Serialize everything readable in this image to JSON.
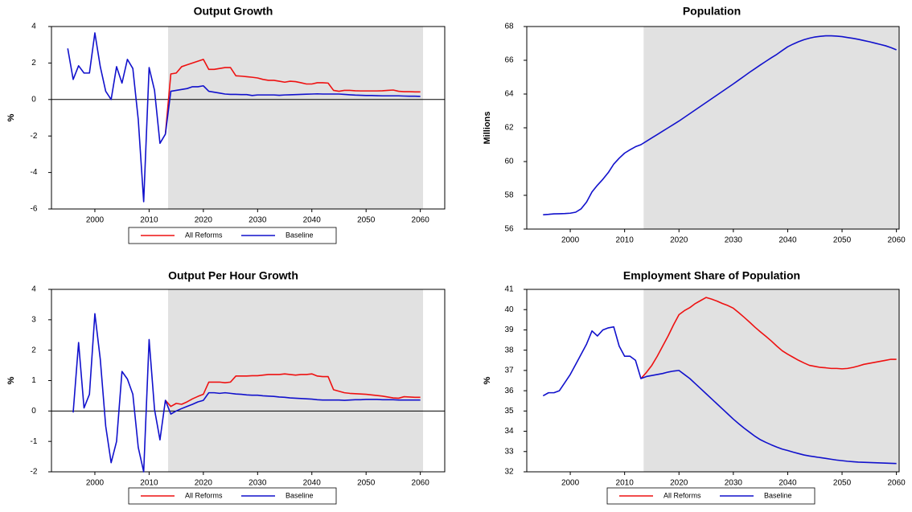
{
  "chart_data": [
    {
      "type": "line",
      "title": "Output Growth",
      "y_label": "%",
      "x": [
        1995,
        1996,
        1997,
        1998,
        1999,
        2000,
        2001,
        2002,
        2003,
        2004,
        2005,
        2006,
        2007,
        2008,
        2009,
        2010,
        2011,
        2012,
        2013,
        2014,
        2015,
        2016,
        2017,
        2018,
        2019,
        2020,
        2021,
        2022,
        2023,
        2024,
        2025,
        2026,
        2027,
        2028,
        2029,
        2030,
        2031,
        2032,
        2033,
        2034,
        2035,
        2036,
        2037,
        2038,
        2039,
        2040,
        2041,
        2042,
        2043,
        2044,
        2045,
        2046,
        2047,
        2048,
        2049,
        2050,
        2051,
        2052,
        2053,
        2054,
        2055,
        2056,
        2057,
        2058,
        2059,
        2060
      ],
      "series": [
        {
          "name": "All Reforms",
          "color": "#ee1111",
          "values": [
            null,
            null,
            null,
            null,
            null,
            null,
            null,
            null,
            null,
            null,
            null,
            null,
            null,
            null,
            null,
            null,
            null,
            null,
            -1.9,
            1.4,
            1.45,
            1.8,
            1.9,
            2.0,
            2.1,
            2.2,
            1.65,
            1.65,
            1.7,
            1.75,
            1.75,
            1.3,
            1.28,
            1.25,
            1.22,
            1.18,
            1.1,
            1.05,
            1.05,
            1.0,
            0.95,
            1.0,
            0.98,
            0.92,
            0.85,
            0.85,
            0.92,
            0.92,
            0.9,
            0.5,
            0.45,
            0.5,
            0.5,
            0.48,
            0.47,
            0.47,
            0.47,
            0.47,
            0.48,
            0.5,
            0.52,
            0.45,
            0.43,
            0.43,
            0.42,
            0.42
          ]
        },
        {
          "name": "Baseline",
          "color": "#1111cc",
          "values": [
            2.8,
            1.1,
            1.85,
            1.45,
            1.45,
            3.65,
            1.8,
            0.45,
            0.0,
            1.8,
            0.9,
            2.2,
            1.7,
            -1.1,
            -5.6,
            1.75,
            0.5,
            -2.4,
            -1.9,
            0.45,
            0.5,
            0.55,
            0.6,
            0.7,
            0.7,
            0.75,
            0.45,
            0.4,
            0.35,
            0.3,
            0.28,
            0.28,
            0.27,
            0.27,
            0.22,
            0.25,
            0.25,
            0.25,
            0.25,
            0.23,
            0.25,
            0.26,
            0.27,
            0.28,
            0.29,
            0.3,
            0.31,
            0.3,
            0.3,
            0.3,
            0.3,
            0.28,
            0.26,
            0.24,
            0.23,
            0.22,
            0.22,
            0.21,
            0.2,
            0.2,
            0.2,
            0.2,
            0.19,
            0.18,
            0.18,
            0.17
          ]
        }
      ],
      "xlim": [
        1992,
        2064.5
      ],
      "xticks": [
        2000,
        2010,
        2020,
        2030,
        2040,
        2050,
        2060
      ],
      "ylim": [
        -6,
        4
      ],
      "yticks": [
        -6,
        -4,
        -2,
        0,
        2,
        4
      ],
      "shade": [
        2013.5,
        2060.5
      ],
      "zero_line": 0,
      "legend": "bottom"
    },
    {
      "type": "line",
      "title": "Population",
      "y_label": "Millions",
      "x": [
        1995,
        1996,
        1997,
        1998,
        1999,
        2000,
        2001,
        2002,
        2003,
        2004,
        2005,
        2006,
        2007,
        2008,
        2009,
        2010,
        2011,
        2012,
        2013,
        2014,
        2015,
        2016,
        2017,
        2018,
        2019,
        2020,
        2021,
        2022,
        2023,
        2024,
        2025,
        2026,
        2027,
        2028,
        2029,
        2030,
        2031,
        2032,
        2033,
        2034,
        2035,
        2036,
        2037,
        2038,
        2039,
        2040,
        2041,
        2042,
        2043,
        2044,
        2045,
        2046,
        2047,
        2048,
        2049,
        2050,
        2051,
        2052,
        2053,
        2054,
        2055,
        2056,
        2057,
        2058,
        2059,
        2060
      ],
      "series": [
        {
          "color": "#1111cc",
          "values": [
            56.85,
            56.87,
            56.9,
            56.91,
            56.92,
            56.94,
            57.0,
            57.2,
            57.6,
            58.2,
            58.6,
            58.95,
            59.35,
            59.85,
            60.2,
            60.5,
            60.7,
            60.88,
            61.0,
            61.2,
            61.4,
            61.6,
            61.8,
            62.0,
            62.2,
            62.4,
            62.62,
            62.84,
            63.06,
            63.28,
            63.5,
            63.72,
            63.94,
            64.16,
            64.38,
            64.6,
            64.83,
            65.06,
            65.29,
            65.51,
            65.73,
            65.94,
            66.15,
            66.35,
            66.58,
            66.8,
            66.96,
            67.1,
            67.22,
            67.31,
            67.38,
            67.42,
            67.45,
            67.45,
            67.43,
            67.4,
            67.35,
            67.3,
            67.24,
            67.17,
            67.1,
            67.02,
            66.94,
            66.86,
            66.75,
            66.62
          ]
        }
      ],
      "xlim": [
        1992,
        2060.5
      ],
      "xticks": [
        2000,
        2010,
        2020,
        2030,
        2040,
        2050,
        2060
      ],
      "ylim": [
        56,
        68
      ],
      "yticks": [
        56,
        58,
        60,
        62,
        64,
        66,
        68
      ],
      "shade": [
        2013.5,
        2060.5
      ]
    },
    {
      "type": "line",
      "title": "Output Per Hour Growth",
      "y_label": "%",
      "x": [
        1995,
        1996,
        1997,
        1998,
        1999,
        2000,
        2001,
        2002,
        2003,
        2004,
        2005,
        2006,
        2007,
        2008,
        2009,
        2010,
        2011,
        2012,
        2013,
        2014,
        2015,
        2016,
        2017,
        2018,
        2019,
        2020,
        2021,
        2022,
        2023,
        2024,
        2025,
        2026,
        2027,
        2028,
        2029,
        2030,
        2031,
        2032,
        2033,
        2034,
        2035,
        2036,
        2037,
        2038,
        2039,
        2040,
        2041,
        2042,
        2043,
        2044,
        2045,
        2046,
        2047,
        2048,
        2049,
        2050,
        2051,
        2052,
        2053,
        2054,
        2055,
        2056,
        2057,
        2058,
        2059,
        2060
      ],
      "series": [
        {
          "name": "All Reforms",
          "color": "#ee1111",
          "values": [
            null,
            null,
            null,
            null,
            null,
            null,
            null,
            null,
            null,
            null,
            null,
            null,
            null,
            null,
            null,
            null,
            null,
            null,
            0.35,
            0.15,
            0.25,
            0.22,
            0.3,
            0.4,
            0.48,
            0.55,
            0.95,
            0.95,
            0.95,
            0.93,
            0.95,
            1.15,
            1.15,
            1.15,
            1.16,
            1.16,
            1.18,
            1.2,
            1.2,
            1.2,
            1.22,
            1.2,
            1.18,
            1.2,
            1.2,
            1.22,
            1.15,
            1.13,
            1.13,
            0.7,
            0.65,
            0.6,
            0.58,
            0.57,
            0.56,
            0.55,
            0.53,
            0.51,
            0.49,
            0.46,
            0.43,
            0.42,
            0.47,
            0.46,
            0.45,
            0.45
          ]
        },
        {
          "name": "Baseline",
          "color": "#1111cc",
          "values": [
            null,
            -0.05,
            2.25,
            0.1,
            0.55,
            3.2,
            1.7,
            -0.5,
            -1.7,
            -1.0,
            1.3,
            1.05,
            0.55,
            -1.2,
            -2.0,
            2.35,
            0.05,
            -0.95,
            0.35,
            -0.1,
            0.0,
            0.08,
            0.15,
            0.22,
            0.3,
            0.35,
            0.6,
            0.6,
            0.58,
            0.6,
            0.58,
            0.56,
            0.55,
            0.53,
            0.52,
            0.52,
            0.5,
            0.49,
            0.48,
            0.46,
            0.45,
            0.43,
            0.42,
            0.41,
            0.4,
            0.39,
            0.37,
            0.36,
            0.36,
            0.36,
            0.36,
            0.35,
            0.36,
            0.37,
            0.37,
            0.38,
            0.38,
            0.38,
            0.37,
            0.37,
            0.37,
            0.36,
            0.36,
            0.36,
            0.36,
            0.36
          ]
        }
      ],
      "xlim": [
        1992,
        2064.5
      ],
      "xticks": [
        2000,
        2010,
        2020,
        2030,
        2040,
        2050,
        2060
      ],
      "ylim": [
        -2,
        4
      ],
      "yticks": [
        -2,
        -1,
        0,
        1,
        2,
        3,
        4
      ],
      "shade": [
        2013.5,
        2060.5
      ],
      "zero_line": 0,
      "legend": "bottom"
    },
    {
      "type": "line",
      "title": "Employment Share of Population",
      "y_label": "%",
      "x": [
        1995,
        1996,
        1997,
        1998,
        1999,
        2000,
        2001,
        2002,
        2003,
        2004,
        2005,
        2006,
        2007,
        2008,
        2009,
        2010,
        2011,
        2012,
        2013,
        2014,
        2015,
        2016,
        2017,
        2018,
        2019,
        2020,
        2021,
        2022,
        2023,
        2024,
        2025,
        2026,
        2027,
        2028,
        2029,
        2030,
        2031,
        2032,
        2033,
        2034,
        2035,
        2036,
        2037,
        2038,
        2039,
        2040,
        2041,
        2042,
        2043,
        2044,
        2045,
        2046,
        2047,
        2048,
        2049,
        2050,
        2051,
        2052,
        2053,
        2054,
        2055,
        2056,
        2057,
        2058,
        2059,
        2060
      ],
      "series": [
        {
          "name": "All Reforms",
          "color": "#ee1111",
          "values": [
            null,
            null,
            null,
            null,
            null,
            null,
            null,
            null,
            null,
            null,
            null,
            null,
            null,
            null,
            null,
            null,
            null,
            null,
            36.6,
            36.9,
            37.25,
            37.7,
            38.2,
            38.7,
            39.25,
            39.75,
            39.95,
            40.1,
            40.3,
            40.45,
            40.6,
            40.52,
            40.42,
            40.3,
            40.2,
            40.07,
            39.85,
            39.62,
            39.38,
            39.13,
            38.9,
            38.68,
            38.45,
            38.2,
            37.97,
            37.8,
            37.65,
            37.5,
            37.37,
            37.25,
            37.2,
            37.15,
            37.13,
            37.1,
            37.1,
            37.08,
            37.1,
            37.15,
            37.22,
            37.3,
            37.35,
            37.4,
            37.45,
            37.5,
            37.55,
            37.55
          ]
        },
        {
          "name": "Baseline",
          "color": "#1111cc",
          "values": [
            35.75,
            35.9,
            35.9,
            36.0,
            36.4,
            36.8,
            37.3,
            37.8,
            38.3,
            38.95,
            38.7,
            39.0,
            39.1,
            39.15,
            38.2,
            37.7,
            37.7,
            37.5,
            36.6,
            36.7,
            36.75,
            36.8,
            36.85,
            36.92,
            36.97,
            37.0,
            36.8,
            36.6,
            36.35,
            36.1,
            35.85,
            35.6,
            35.35,
            35.1,
            34.85,
            34.6,
            34.37,
            34.15,
            33.95,
            33.75,
            33.58,
            33.45,
            33.33,
            33.22,
            33.12,
            33.05,
            32.97,
            32.9,
            32.83,
            32.78,
            32.74,
            32.7,
            32.66,
            32.62,
            32.58,
            32.55,
            32.52,
            32.5,
            32.48,
            32.47,
            32.46,
            32.45,
            32.44,
            32.43,
            32.42,
            32.41
          ]
        }
      ],
      "xlim": [
        1992,
        2060.5
      ],
      "xticks": [
        2000,
        2010,
        2020,
        2030,
        2040,
        2050,
        2060
      ],
      "ylim": [
        32,
        41
      ],
      "yticks": [
        32,
        33,
        34,
        35,
        36,
        37,
        38,
        39,
        40,
        41
      ],
      "shade": [
        2013.5,
        2060.5
      ],
      "legend": "bottom"
    }
  ]
}
